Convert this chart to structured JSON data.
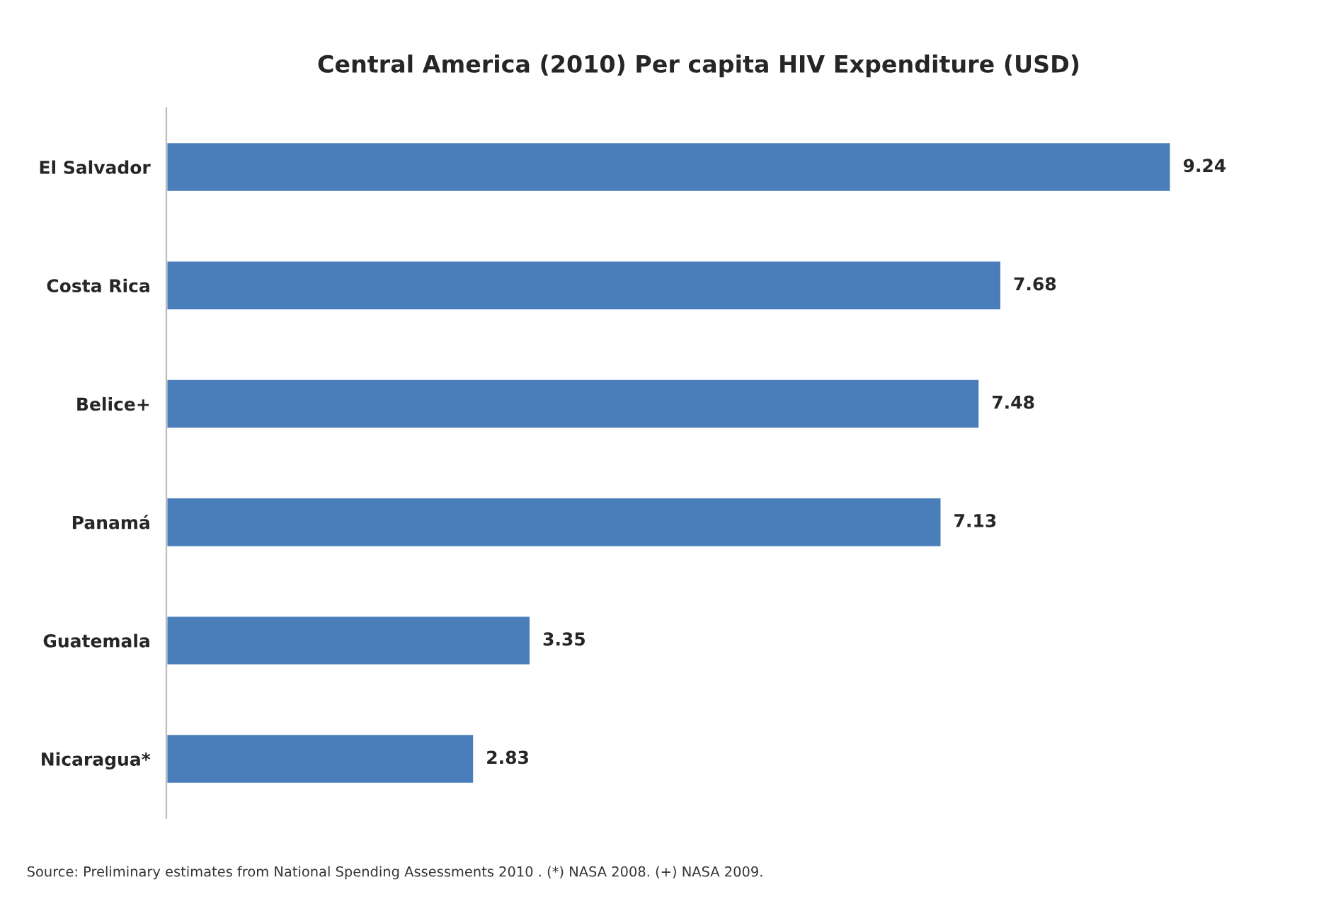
{
  "chart_data": {
    "type": "bar",
    "orientation": "horizontal",
    "title": "Central America (2010) Per capita HIV Expenditure (USD)",
    "categories": [
      "El Salvador",
      "Costa Rica",
      "Belice+",
      "Panamá",
      "Guatemala",
      "Nicaragua*"
    ],
    "values": [
      9.24,
      7.68,
      7.48,
      7.13,
      3.35,
      2.83
    ],
    "color": "#4a7ebb",
    "data_labels": true,
    "grid": false,
    "legend": false,
    "annotations": [
      "Source: Preliminary estimates from National Spending Assessments 2010 . (*) NASA 2008. (+) NASA 2009."
    ]
  }
}
